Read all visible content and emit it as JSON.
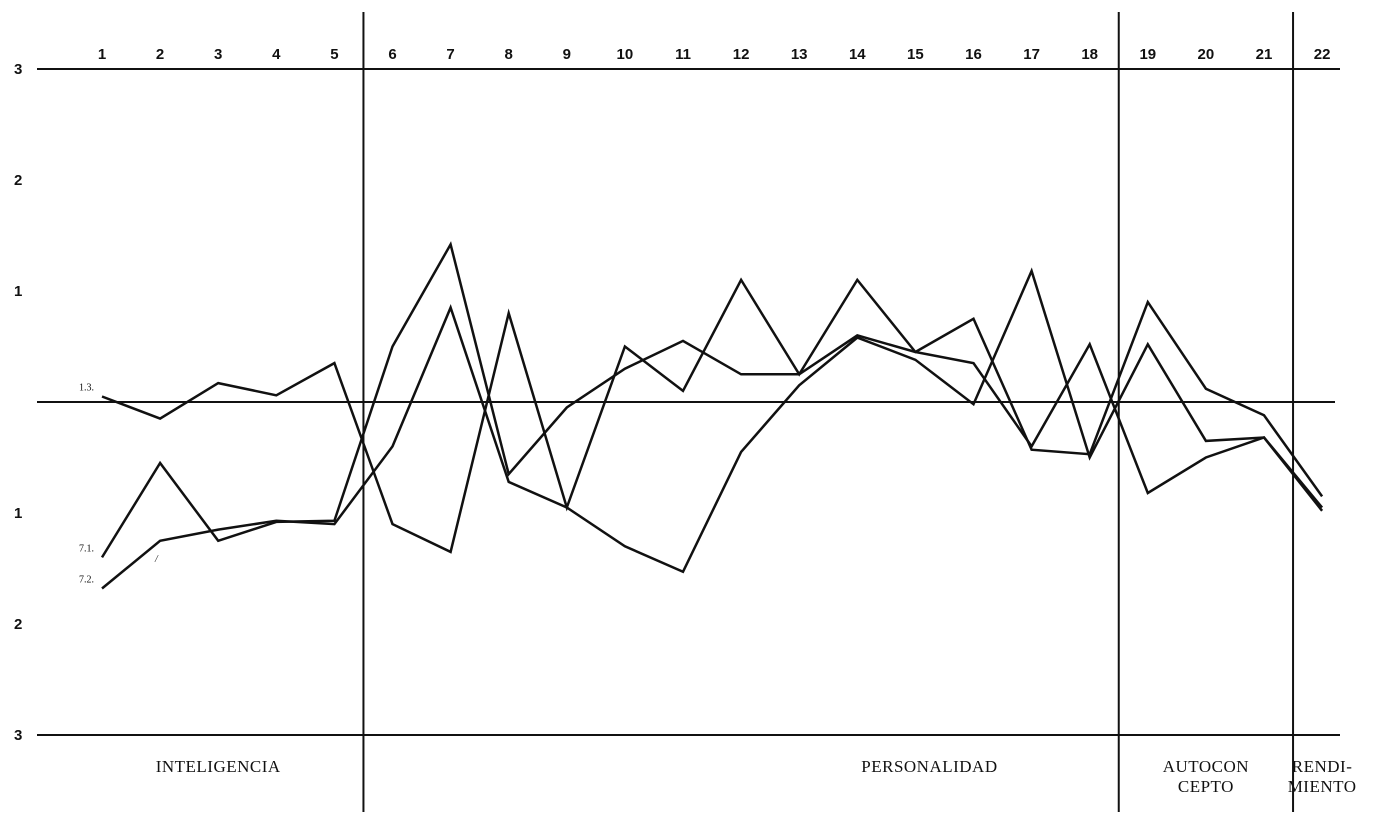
{
  "chart_data": {
    "type": "line",
    "x": [
      1,
      2,
      3,
      4,
      5,
      6,
      7,
      8,
      9,
      10,
      11,
      12,
      13,
      14,
      15,
      16,
      17,
      18,
      19,
      20,
      21,
      22
    ],
    "x_tick_labels": [
      "1",
      "2",
      "3",
      "4",
      "5",
      "6",
      "7",
      "8",
      "9",
      "10",
      "11",
      "12",
      "13",
      "14",
      "15",
      "16",
      "17",
      "18",
      "19",
      "20",
      "21",
      "22"
    ],
    "y_tick_labels": [
      "3",
      "2",
      "1",
      "1",
      "2",
      "3"
    ],
    "ylim": [
      -3,
      3
    ],
    "grid": false,
    "sections": [
      {
        "label_lines": [
          "INTELIGENCIA"
        ],
        "from": 1,
        "to": 5
      },
      {
        "label_lines": [
          "PERSONALIDAD"
        ],
        "from": 6,
        "to": 18
      },
      {
        "label_lines": [
          "AUTOCON",
          "CEPTO"
        ],
        "from": 19,
        "to": 21
      },
      {
        "label_lines": [
          "RENDI-",
          "MIENTO"
        ],
        "from": 22,
        "to": 22
      }
    ],
    "series": [
      {
        "name": "1.3.",
        "values": [
          0.05,
          -0.15,
          0.17,
          0.06,
          0.35,
          -1.1,
          -1.35,
          0.8,
          -0.95,
          0.5,
          0.1,
          1.1,
          0.25,
          1.1,
          0.45,
          0.35,
          -0.4,
          0.52,
          -0.82,
          -0.5,
          -0.32,
          -0.95
        ]
      },
      {
        "name": "7.1.",
        "values": [
          -1.4,
          -0.55,
          -1.25,
          -1.08,
          -1.07,
          0.5,
          1.42,
          -0.65,
          -0.05,
          0.3,
          0.55,
          0.25,
          0.25,
          0.6,
          0.45,
          0.75,
          -0.43,
          -0.47,
          0.9,
          0.12,
          -0.12,
          -0.85
        ]
      },
      {
        "name": "7.2.",
        "values": [
          -1.68,
          -1.25,
          -1.15,
          -1.07,
          -1.1,
          -0.4,
          0.85,
          -0.72,
          -0.95,
          -1.3,
          -1.53,
          -0.45,
          0.15,
          0.58,
          0.38,
          -0.02,
          1.18,
          -0.5,
          0.52,
          -0.35,
          -0.32,
          -0.98
        ]
      }
    ],
    "annotations": [
      "/"
    ]
  }
}
